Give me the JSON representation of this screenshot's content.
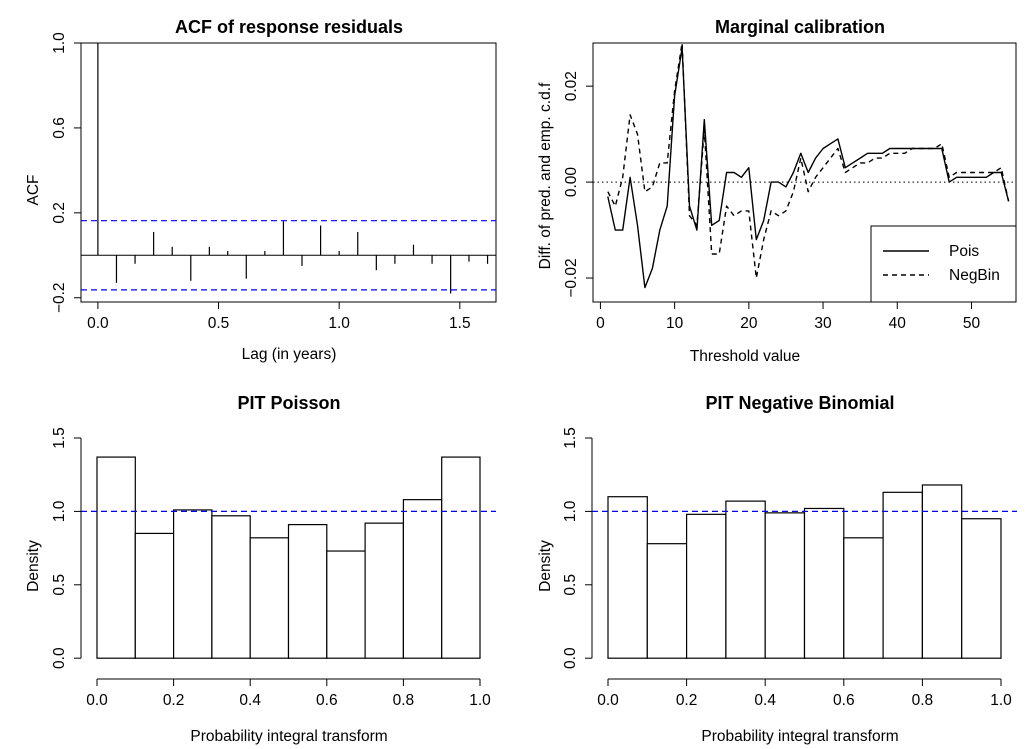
{
  "colors": {
    "background": "#ffffff",
    "ink": "#000000",
    "reference_line": "#0000ff"
  },
  "chart_data": [
    {
      "type": "bar",
      "title": "ACF of response residuals",
      "xlabel": "Lag (in years)",
      "ylabel": "ACF",
      "xlim": [
        -0.07,
        1.65
      ],
      "ylim": [
        -0.22,
        1.0
      ],
      "xticks": [
        "0.0",
        "0.5",
        "1.0",
        "1.5"
      ],
      "yticks": [
        "−0.2",
        "0.2",
        "0.6",
        "1.0"
      ],
      "lags": [
        0.0,
        0.077,
        0.154,
        0.231,
        0.308,
        0.385,
        0.462,
        0.538,
        0.615,
        0.692,
        0.769,
        0.846,
        0.923,
        1.0,
        1.077,
        1.154,
        1.231,
        1.308,
        1.385,
        1.462,
        1.538,
        1.615
      ],
      "acf": [
        1.0,
        -0.13,
        -0.04,
        0.11,
        0.04,
        -0.12,
        0.04,
        0.02,
        -0.11,
        0.02,
        0.16,
        -0.05,
        0.14,
        0.02,
        0.11,
        -0.07,
        -0.04,
        0.05,
        -0.04,
        -0.18,
        -0.03,
        -0.04
      ],
      "confidence_band": [
        0.163,
        -0.163
      ],
      "grid": false
    },
    {
      "type": "line",
      "title": "Marginal calibration",
      "xlabel": "Threshold value",
      "ylabel": "Diff. of pred. and emp. c.d.f",
      "xlim": [
        -1,
        56
      ],
      "ylim": [
        -0.025,
        0.029
      ],
      "xticks": [
        "0",
        "10",
        "20",
        "30",
        "40",
        "50"
      ],
      "yticks": [
        "−0.02",
        "0.00",
        "0.02"
      ],
      "x": [
        1,
        2,
        3,
        4,
        5,
        6,
        7,
        8,
        9,
        10,
        11,
        12,
        13,
        14,
        15,
        16,
        17,
        18,
        19,
        20,
        21,
        22,
        23,
        24,
        25,
        26,
        27,
        28,
        29,
        30,
        31,
        32,
        33,
        34,
        35,
        36,
        37,
        38,
        39,
        40,
        41,
        42,
        43,
        44,
        45,
        46,
        47,
        48,
        49,
        50,
        51,
        52,
        53,
        54,
        55
      ],
      "series": [
        {
          "name": "Pois",
          "dash": "solid",
          "values": [
            -0.003,
            -0.01,
            -0.01,
            0.001,
            -0.009,
            -0.022,
            -0.018,
            -0.01,
            -0.005,
            0.018,
            0.028,
            -0.005,
            -0.01,
            0.013,
            -0.009,
            -0.008,
            0.002,
            0.002,
            0.001,
            0.003,
            -0.012,
            -0.008,
            0.0,
            0.0,
            -0.001,
            0.002,
            0.006,
            0.002,
            0.005,
            0.007,
            0.008,
            0.009,
            0.003,
            0.004,
            0.005,
            0.006,
            0.006,
            0.006,
            0.007,
            0.007,
            0.007,
            0.007,
            0.007,
            0.007,
            0.007,
            0.007,
            0.0,
            0.001,
            0.001,
            0.001,
            0.001,
            0.001,
            0.002,
            0.002,
            -0.004
          ]
        },
        {
          "name": "NegBin",
          "dash": "dashed",
          "values": [
            -0.002,
            -0.005,
            0.001,
            0.014,
            0.01,
            -0.002,
            -0.001,
            0.004,
            0.004,
            0.019,
            0.029,
            -0.007,
            -0.009,
            0.011,
            -0.015,
            -0.015,
            -0.005,
            -0.007,
            -0.006,
            -0.006,
            -0.02,
            -0.012,
            -0.006,
            -0.007,
            -0.006,
            -0.002,
            0.005,
            -0.002,
            0.001,
            0.003,
            0.005,
            0.007,
            0.002,
            0.003,
            0.004,
            0.004,
            0.005,
            0.005,
            0.006,
            0.006,
            0.006,
            0.007,
            0.007,
            0.007,
            0.007,
            0.008,
            0.001,
            0.002,
            0.002,
            0.002,
            0.002,
            0.002,
            0.002,
            0.003,
            -0.004
          ]
        }
      ],
      "reference_line": 0,
      "legend": {
        "placement": "bottom-right"
      },
      "grid": false
    },
    {
      "type": "bar",
      "title": "PIT Poisson",
      "xlabel": "Probability integral transform",
      "ylabel": "Density",
      "xlim": [
        0,
        1
      ],
      "ylim": [
        0,
        1.5
      ],
      "xticks": [
        "0.0",
        "0.2",
        "0.4",
        "0.6",
        "0.8",
        "1.0"
      ],
      "yticks": [
        "0.0",
        "0.5",
        "1.0",
        "1.5"
      ],
      "bin_edges": [
        0.0,
        0.1,
        0.2,
        0.3,
        0.4,
        0.5,
        0.6,
        0.7,
        0.8,
        0.9,
        1.0
      ],
      "values": [
        1.37,
        0.85,
        1.01,
        0.97,
        0.82,
        0.91,
        0.73,
        0.92,
        1.08,
        1.37
      ],
      "reference_line": 1.0,
      "grid": false
    },
    {
      "type": "bar",
      "title": "PIT Negative Binomial",
      "xlabel": "Probability integral transform",
      "ylabel": "Density",
      "xlim": [
        0,
        1
      ],
      "ylim": [
        0,
        1.5
      ],
      "xticks": [
        "0.0",
        "0.2",
        "0.4",
        "0.6",
        "0.8",
        "1.0"
      ],
      "yticks": [
        "0.0",
        "0.5",
        "1.0",
        "1.5"
      ],
      "bin_edges": [
        0.0,
        0.1,
        0.2,
        0.3,
        0.4,
        0.5,
        0.6,
        0.7,
        0.8,
        0.9,
        1.0
      ],
      "values": [
        1.1,
        0.78,
        0.98,
        1.07,
        0.99,
        1.02,
        0.82,
        1.13,
        1.18,
        0.95
      ],
      "reference_line": 1.0,
      "grid": false
    }
  ]
}
